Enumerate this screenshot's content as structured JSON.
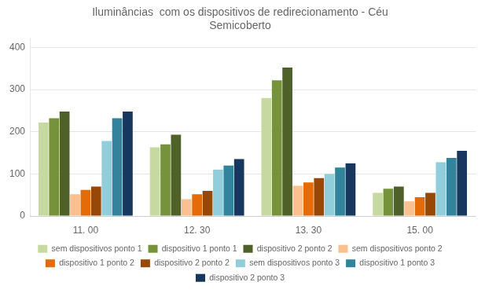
{
  "chart_data": {
    "type": "bar",
    "title": "Iluminâncias  com os dispositivos de redirecionamento - Céu\nSemicoberto",
    "categories": [
      "11. 00",
      "12. 30",
      "13. 30",
      "15. 00"
    ],
    "series": [
      {
        "name": "sem dispositivos ponto 1",
        "color": "#c6d9a0",
        "values": [
          222,
          163,
          280,
          55
        ]
      },
      {
        "name": "dispositivo 1 ponto 1",
        "color": "#76933c",
        "values": [
          232,
          170,
          322,
          65
        ]
      },
      {
        "name": "dispositivo 2 ponto 2",
        "color": "#4e6128",
        "values": [
          248,
          193,
          352,
          70
        ]
      },
      {
        "name": "sem dispositivos ponto 2",
        "color": "#fac090",
        "values": [
          52,
          40,
          72,
          35
        ]
      },
      {
        "name": "dispositivo 1 ponto 2",
        "color": "#e36c09",
        "values": [
          62,
          52,
          80,
          45
        ]
      },
      {
        "name": "dispositivo 2 ponto 2",
        "color": "#974706",
        "values": [
          70,
          60,
          90,
          55
        ]
      },
      {
        "name": "sem dispositivos ponto 3",
        "color": "#92cddc",
        "values": [
          178,
          110,
          100,
          128
        ]
      },
      {
        "name": "dispositivo 1 ponto 3",
        "color": "#31849b",
        "values": [
          232,
          120,
          115,
          138
        ]
      },
      {
        "name": "dispositivo 2 ponto 3",
        "color": "#17375e",
        "values": [
          248,
          135,
          125,
          155
        ]
      }
    ],
    "ylim": [
      0,
      420
    ],
    "yticks": [
      0,
      100,
      200,
      300,
      400
    ],
    "grid": true,
    "legend": "bottom"
  }
}
